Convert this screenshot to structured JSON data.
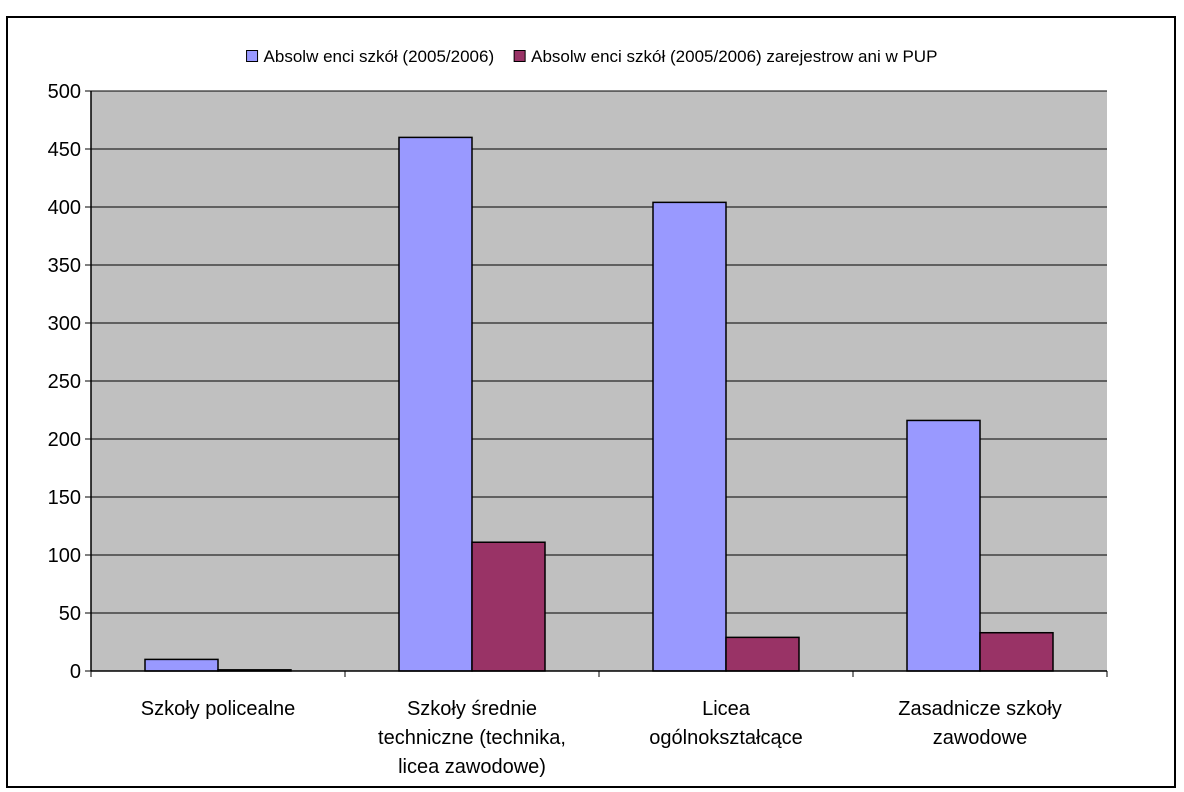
{
  "chart_data": {
    "type": "bar",
    "categories": [
      [
        "Szkoły policealne"
      ],
      [
        "Szkoły średnie",
        "techniczne (technika,",
        "licea zawodowe)"
      ],
      [
        "Licea",
        "ogólnokształcące"
      ],
      [
        "Zasadnicze szkoły",
        "zawodowe"
      ]
    ],
    "series": [
      {
        "name": "Absolw enci szkół (2005/2006)",
        "color": "#9999FF",
        "values": [
          10,
          460,
          404,
          216
        ]
      },
      {
        "name": "Absolw enci szkół (2005/2006) zarejestrow ani w PUP",
        "color": "#993366",
        "values": [
          1,
          111,
          29,
          33
        ]
      }
    ],
    "ylim": [
      0,
      500
    ],
    "ytick_step": 50,
    "grid": true,
    "plot_background": "#C0C0C0",
    "legend_position": "top"
  }
}
